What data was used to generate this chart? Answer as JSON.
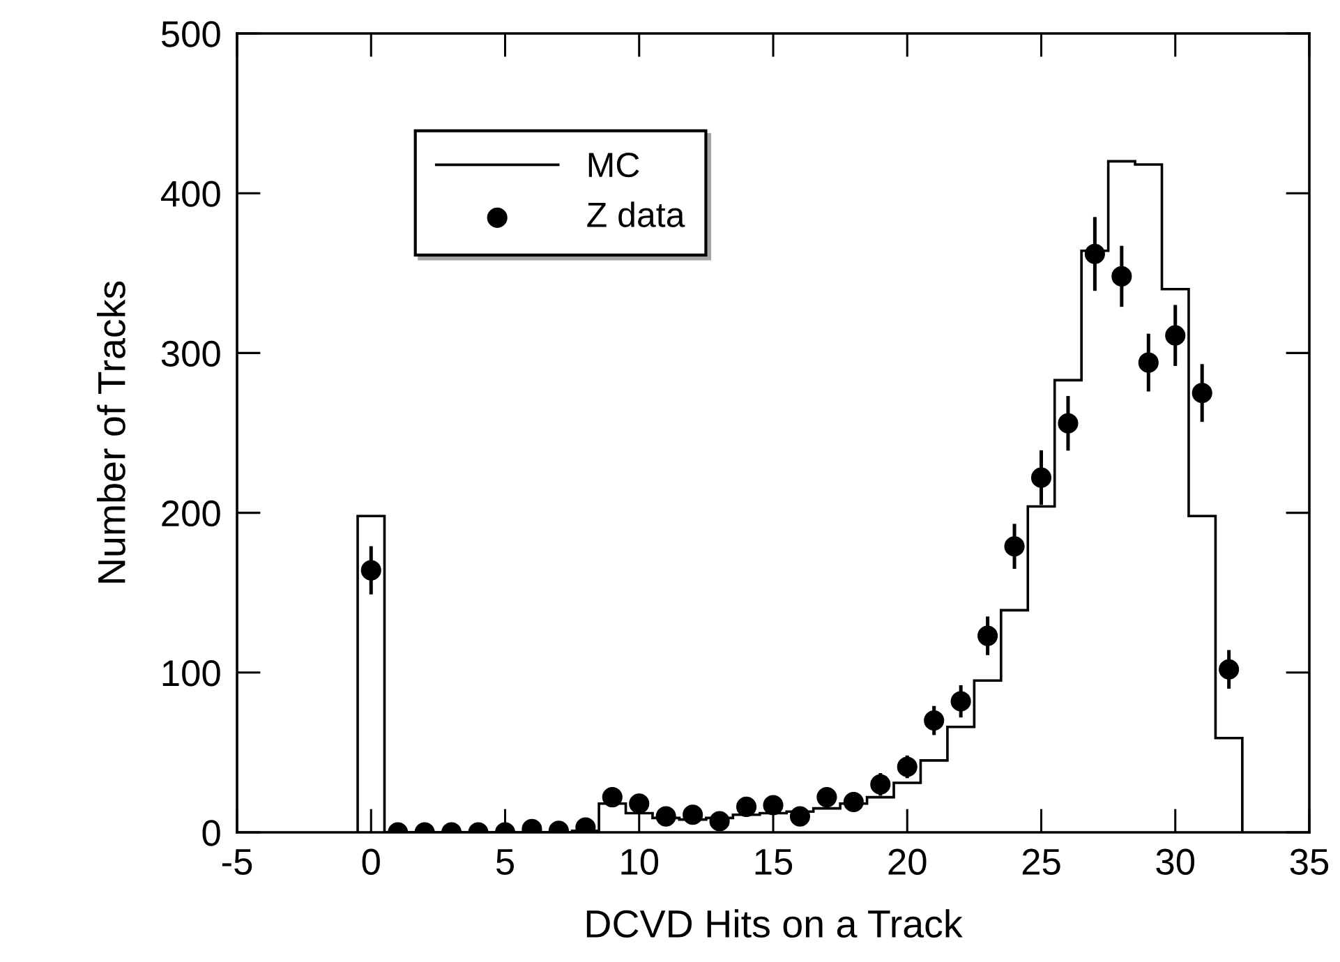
{
  "chart_data": {
    "type": "histogram",
    "xlabel": "DCVD Hits on a Track",
    "ylabel": "Number of Tracks",
    "bins": [
      -0.5,
      0.5,
      1.5,
      2.5,
      3.5,
      4.5,
      5.5,
      6.5,
      7.5,
      8.5,
      9.5,
      10.5,
      11.5,
      12.5,
      13.5,
      14.5,
      15.5,
      16.5,
      17.5,
      18.5,
      19.5,
      20.5,
      21.5,
      22.5,
      23.5,
      24.5,
      25.5,
      26.5,
      27.5,
      28.5,
      29.5,
      30.5,
      31.5,
      32.5
    ],
    "series": [
      {
        "name": "MC",
        "type": "histogram",
        "color": "#000000",
        "values": [
          198,
          0,
          0,
          0,
          0,
          0,
          0,
          0,
          1,
          18,
          12,
          9,
          8,
          9,
          11,
          12,
          13,
          15,
          18,
          22,
          31,
          45,
          66,
          95,
          139,
          204,
          283,
          364,
          420,
          418,
          340,
          198,
          59
        ]
      },
      {
        "name": "Z data",
        "type": "scatter",
        "color": "#000000",
        "x": [
          0,
          1,
          2,
          3,
          4,
          5,
          6,
          7,
          8,
          9,
          10,
          11,
          12,
          13,
          14,
          15,
          16,
          17,
          18,
          19,
          20,
          21,
          22,
          23,
          24,
          25,
          26,
          27,
          28,
          29,
          30,
          31,
          32
        ],
        "values": [
          164,
          0,
          0,
          0,
          0,
          0,
          2,
          1,
          3,
          22,
          18,
          10,
          11,
          7,
          16,
          17,
          10,
          22,
          19,
          30,
          41,
          70,
          82,
          123,
          179,
          222,
          256,
          362,
          348,
          294,
          311,
          275,
          102
        ],
        "errors": [
          14,
          null,
          null,
          null,
          null,
          null,
          null,
          null,
          null,
          5,
          5,
          4,
          4,
          4,
          5,
          5,
          4,
          5,
          5,
          6,
          6,
          8,
          9,
          11,
          13,
          16,
          16,
          22,
          18,
          17,
          18,
          17,
          11
        ]
      }
    ],
    "xlim": [
      -5,
      35
    ],
    "xticks": [
      -5,
      0,
      5,
      10,
      15,
      20,
      25,
      30,
      35
    ],
    "ylim": [
      0,
      500
    ],
    "yticks": [
      0,
      100,
      200,
      300,
      400,
      500
    ],
    "marker": "circle",
    "legend": "top left",
    "grid": false
  }
}
